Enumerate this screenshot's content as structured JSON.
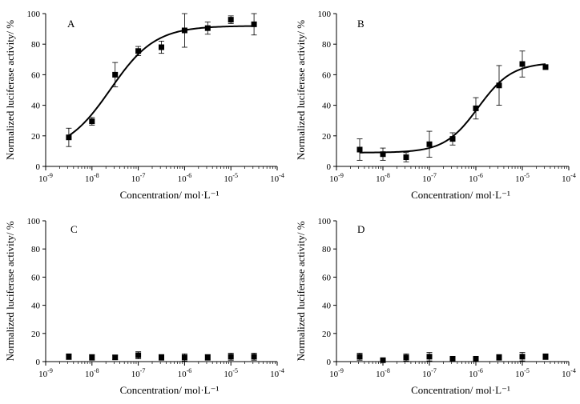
{
  "chart_data": [
    {
      "type": "scatter",
      "panel": "A",
      "xlabel": "Concentration/ mol·L⁻¹",
      "ylabel": "Normalized luciferase activity/ %",
      "xscale": "log",
      "xlim_exp": [
        -9,
        -4
      ],
      "ylim": [
        0,
        100
      ],
      "yticks": [
        "0",
        "20",
        "40",
        "60",
        "80",
        "100"
      ],
      "fit_curve": true,
      "points": [
        {
          "x_exp": -8.5,
          "y": 19,
          "err": 6
        },
        {
          "x_exp": -8.0,
          "y": 29.5,
          "err": 2.5
        },
        {
          "x_exp": -7.5,
          "y": 60,
          "err": 8
        },
        {
          "x_exp": -7.0,
          "y": 75.5,
          "err": 3
        },
        {
          "x_exp": -6.5,
          "y": 78,
          "err": 4
        },
        {
          "x_exp": -6.0,
          "y": 89,
          "err": 11
        },
        {
          "x_exp": -5.5,
          "y": 90.5,
          "err": 4
        },
        {
          "x_exp": -5.0,
          "y": 96,
          "err": 2.5
        },
        {
          "x_exp": -4.5,
          "y": 93,
          "err": 7
        }
      ]
    },
    {
      "type": "scatter",
      "panel": "B",
      "xlabel": "Concentration/ mol·L⁻¹",
      "ylabel": "Normalized luciferase activity/ %",
      "xscale": "log",
      "xlim_exp": [
        -9,
        -4
      ],
      "ylim": [
        0,
        100
      ],
      "yticks": [
        "0",
        "20",
        "40",
        "60",
        "80",
        "100"
      ],
      "fit_curve": true,
      "points": [
        {
          "x_exp": -8.5,
          "y": 11,
          "err": 7
        },
        {
          "x_exp": -8.0,
          "y": 8,
          "err": 4
        },
        {
          "x_exp": -7.5,
          "y": 6,
          "err": 3
        },
        {
          "x_exp": -7.0,
          "y": 14.5,
          "err": 8.5
        },
        {
          "x_exp": -6.5,
          "y": 18,
          "err": 4
        },
        {
          "x_exp": -6.0,
          "y": 38,
          "err": 7
        },
        {
          "x_exp": -5.5,
          "y": 53,
          "err": 13
        },
        {
          "x_exp": -5.0,
          "y": 67,
          "err": 8.5
        },
        {
          "x_exp": -4.5,
          "y": 65,
          "err": 1.5
        }
      ]
    },
    {
      "type": "scatter",
      "panel": "C",
      "xlabel": "Concentration/ mol·L⁻¹",
      "ylabel": "Normalized luciferase activity/ %",
      "xscale": "log",
      "xlim_exp": [
        -9,
        -4
      ],
      "ylim": [
        0,
        100
      ],
      "yticks": [
        "0",
        "20",
        "40",
        "60",
        "80",
        "100"
      ],
      "fit_curve": false,
      "points": [
        {
          "x_exp": -8.5,
          "y": 3.5,
          "err": 2
        },
        {
          "x_exp": -8.0,
          "y": 3,
          "err": 2
        },
        {
          "x_exp": -7.5,
          "y": 3,
          "err": 1.5
        },
        {
          "x_exp": -7.0,
          "y": 4.5,
          "err": 2.5
        },
        {
          "x_exp": -6.5,
          "y": 3,
          "err": 2
        },
        {
          "x_exp": -6.0,
          "y": 3,
          "err": 2.5
        },
        {
          "x_exp": -5.5,
          "y": 3,
          "err": 2
        },
        {
          "x_exp": -5.0,
          "y": 3.5,
          "err": 2.5
        },
        {
          "x_exp": -4.5,
          "y": 3.5,
          "err": 2.5
        }
      ]
    },
    {
      "type": "scatter",
      "panel": "D",
      "xlabel": "Concentration/ mol·L⁻¹",
      "ylabel": "Normalized luciferase activity/ %",
      "xscale": "log",
      "xlim_exp": [
        -9,
        -4
      ],
      "ylim": [
        0,
        100
      ],
      "yticks": [
        "0",
        "20",
        "40",
        "60",
        "80",
        "100"
      ],
      "fit_curve": false,
      "points": [
        {
          "x_exp": -8.5,
          "y": 3.5,
          "err": 2.5
        },
        {
          "x_exp": -8.0,
          "y": 1,
          "err": 1
        },
        {
          "x_exp": -7.5,
          "y": 3,
          "err": 2.5
        },
        {
          "x_exp": -7.0,
          "y": 3.5,
          "err": 3
        },
        {
          "x_exp": -6.5,
          "y": 2,
          "err": 1
        },
        {
          "x_exp": -6.0,
          "y": 2,
          "err": 1
        },
        {
          "x_exp": -5.5,
          "y": 3,
          "err": 2
        },
        {
          "x_exp": -5.0,
          "y": 3.5,
          "err": 3
        },
        {
          "x_exp": -4.5,
          "y": 3.5,
          "err": 2
        }
      ]
    }
  ]
}
